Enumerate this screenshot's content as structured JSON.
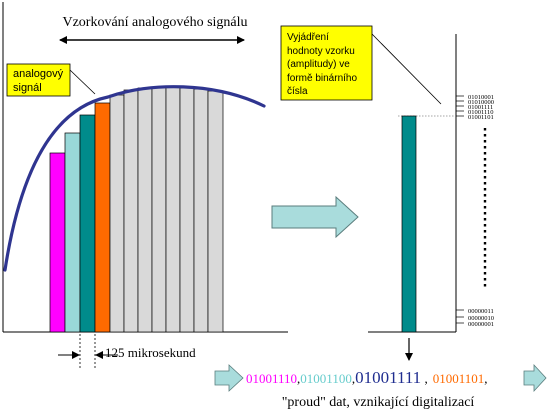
{
  "header": {
    "title": "Vzorkování analogového signálu"
  },
  "left_panel": {
    "signal_label_lines": [
      "analogový",
      "signál"
    ],
    "interval_label": "125 mikrosekund"
  },
  "right_panel": {
    "note_lines": [
      "Vyjádření",
      "hodnoty vzorku",
      "(amplitudy) ve",
      "formě binárního",
      "čísla"
    ],
    "scale_top_labels": [
      "01010001",
      "01010000",
      "01001111",
      "01001110",
      "01001101"
    ],
    "scale_bottom_labels": [
      "00000011",
      "00000010",
      "00000001"
    ]
  },
  "stream": {
    "values": [
      {
        "text": "01001110",
        "suffix": ",",
        "color": "#ff00ff"
      },
      {
        "text": "01001100",
        "suffix": ",",
        "color": "#66cccc"
      },
      {
        "text": "01001111",
        "suffix": " ,",
        "color": "#1f2d8f"
      },
      {
        "text": "01001101",
        "suffix": ",",
        "color": "#ff6a00"
      }
    ],
    "caption": "\"proud\" dat, vznikající digitalizací"
  },
  "colors": {
    "bar_magenta": "#ff00ff",
    "bar_light_teal": "#99d8d8",
    "bar_teal": "#008b8b",
    "bar_orange": "#ff6a00",
    "bar_gray": "#d9d9d9",
    "curve": "#2f3590",
    "note_fill": "#ffff00",
    "arrow_fill": "#a9dcdc"
  }
}
